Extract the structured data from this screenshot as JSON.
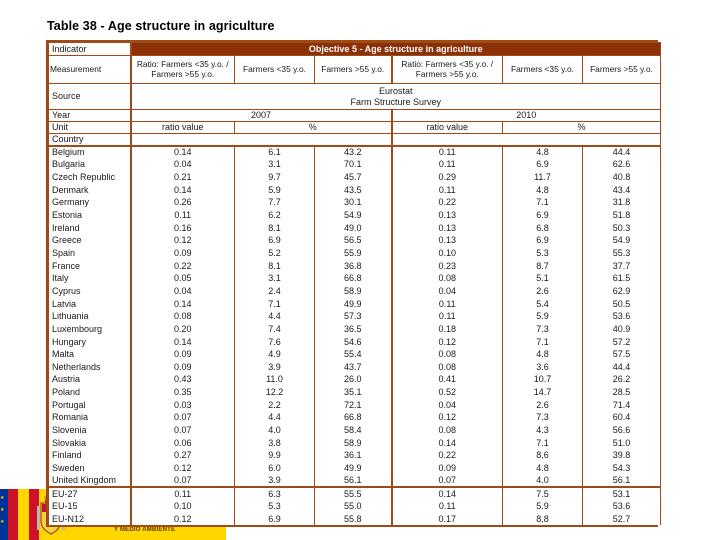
{
  "title": "Table 38 - Age structure in agriculture",
  "colors": {
    "header_bar": "#8C3008",
    "table_border": "#9E4B17",
    "eu_blue": "#003399",
    "flag_red": "#CE1126",
    "flag_yellow": "#FFD600",
    "banner_text": "#663300",
    "text": "#1A1A1A"
  },
  "table": {
    "indicator_label": "Indicator",
    "indicator_value": "Objective 5 - Age structure in agriculture",
    "measurement_label": "Measurement",
    "measurements": [
      "Ratio: Farmers <35 y.o. / Farmers >55 y.o.",
      "Farmers <35 y.o.",
      "Farmers >55 y.o.",
      "Ratio: Farmers <35 y.o. / Farmers >55 y.o.",
      "Farmers <35 y.o.",
      "Farmers >55 y.o."
    ],
    "source_label": "Source",
    "source_line1": "Eurostat",
    "source_line2": "Farm Structure Survey",
    "year_label": "Year",
    "years": [
      "2007",
      "2010"
    ],
    "unit_label": "Unit",
    "units": [
      "ratio value",
      "%",
      "ratio value",
      "%"
    ],
    "country_label": "Country",
    "rows": [
      {
        "country": "Belgium",
        "values": [
          "0.14",
          "6.1",
          "43.2",
          "0.11",
          "4.8",
          "44.4"
        ]
      },
      {
        "country": "Bulgaria",
        "values": [
          "0.04",
          "3.1",
          "70.1",
          "0.11",
          "6.9",
          "62.6"
        ]
      },
      {
        "country": "Czech Republic",
        "values": [
          "0.21",
          "9.7",
          "45.7",
          "0.29",
          "11.7",
          "40.8"
        ]
      },
      {
        "country": "Denmark",
        "values": [
          "0.14",
          "5.9",
          "43.5",
          "0.11",
          "4.8",
          "43.4"
        ]
      },
      {
        "country": "Germany",
        "values": [
          "0.26",
          "7.7",
          "30.1",
          "0.22",
          "7.1",
          "31.8"
        ]
      },
      {
        "country": "Estonia",
        "values": [
          "0.11",
          "6.2",
          "54.9",
          "0.13",
          "6.9",
          "51.8"
        ]
      },
      {
        "country": "Ireland",
        "values": [
          "0.16",
          "8.1",
          "49.0",
          "0.13",
          "6.8",
          "50.3"
        ]
      },
      {
        "country": "Greece",
        "values": [
          "0.12",
          "6.9",
          "56.5",
          "0.13",
          "6.9",
          "54.9"
        ]
      },
      {
        "country": "Spain",
        "values": [
          "0.09",
          "5.2",
          "55.9",
          "0.10",
          "5.3",
          "55.3"
        ]
      },
      {
        "country": "France",
        "values": [
          "0.22",
          "8.1",
          "36.8",
          "0.23",
          "8.7",
          "37.7"
        ]
      },
      {
        "country": "Italy",
        "values": [
          "0.05",
          "3.1",
          "66.8",
          "0.08",
          "5.1",
          "61.5"
        ]
      },
      {
        "country": "Cyprus",
        "values": [
          "0.04",
          "2.4",
          "58.9",
          "0.04",
          "2.6",
          "62.9"
        ]
      },
      {
        "country": "Latvia",
        "values": [
          "0.14",
          "7.1",
          "49.9",
          "0.11",
          "5.4",
          "50.5"
        ]
      },
      {
        "country": "Lithuania",
        "values": [
          "0.08",
          "4.4",
          "57.3",
          "0.11",
          "5.9",
          "53.6"
        ]
      },
      {
        "country": "Luxembourg",
        "values": [
          "0.20",
          "7.4",
          "36.5",
          "0.18",
          "7.3",
          "40.9"
        ]
      },
      {
        "country": "Hungary",
        "values": [
          "0.14",
          "7.6",
          "54.6",
          "0.12",
          "7.1",
          "57.2"
        ]
      },
      {
        "country": "Malta",
        "values": [
          "0.09",
          "4.9",
          "55.4",
          "0.08",
          "4.8",
          "57.5"
        ]
      },
      {
        "country": "Netherlands",
        "values": [
          "0.09",
          "3.9",
          "43.7",
          "0.08",
          "3.6",
          "44.4"
        ]
      },
      {
        "country": "Austria",
        "values": [
          "0.43",
          "11.0",
          "26.0",
          "0.41",
          "10.7",
          "26.2"
        ]
      },
      {
        "country": "Poland",
        "values": [
          "0.35",
          "12.2",
          "35.1",
          "0.52",
          "14.7",
          "28.5"
        ]
      },
      {
        "country": "Portugal",
        "values": [
          "0.03",
          "2.2",
          "72.1",
          "0.04",
          "2.6",
          "71.4"
        ]
      },
      {
        "country": "Romania",
        "values": [
          "0.07",
          "4.4",
          "66.8",
          "0.12",
          "7.3",
          "60.4"
        ]
      },
      {
        "country": "Slovenia",
        "values": [
          "0.07",
          "4.0",
          "58.4",
          "0.08",
          "4.3",
          "56.6"
        ]
      },
      {
        "country": "Slovakia",
        "values": [
          "0.06",
          "3.8",
          "58.9",
          "0.14",
          "7.1",
          "51.0"
        ]
      },
      {
        "country": "Finland",
        "values": [
          "0.27",
          "9.9",
          "36.1",
          "0.22",
          "8.6",
          "39.8"
        ]
      },
      {
        "country": "Sweden",
        "values": [
          "0.12",
          "6.0",
          "49.9",
          "0.09",
          "4.8",
          "54.3"
        ]
      },
      {
        "country": "United Kingdom",
        "values": [
          "0.07",
          "3.9",
          "56.1",
          "0.07",
          "4.0",
          "56.1"
        ]
      }
    ],
    "eu_rows": [
      {
        "country": "EU-27",
        "values": [
          "0.11",
          "6.3",
          "55.5",
          "0.14",
          "7.5",
          "53.1"
        ]
      },
      {
        "country": "EU-15",
        "values": [
          "0.10",
          "5.3",
          "55.0",
          "0.11",
          "5.9",
          "53.6"
        ]
      },
      {
        "country": "EU-N12",
        "values": [
          "0.12",
          "6.9",
          "55.8",
          "0.17",
          "8.8",
          "52.7"
        ]
      }
    ]
  },
  "footer": {
    "banner_text": "Y MEDIO AMBIENTE"
  }
}
